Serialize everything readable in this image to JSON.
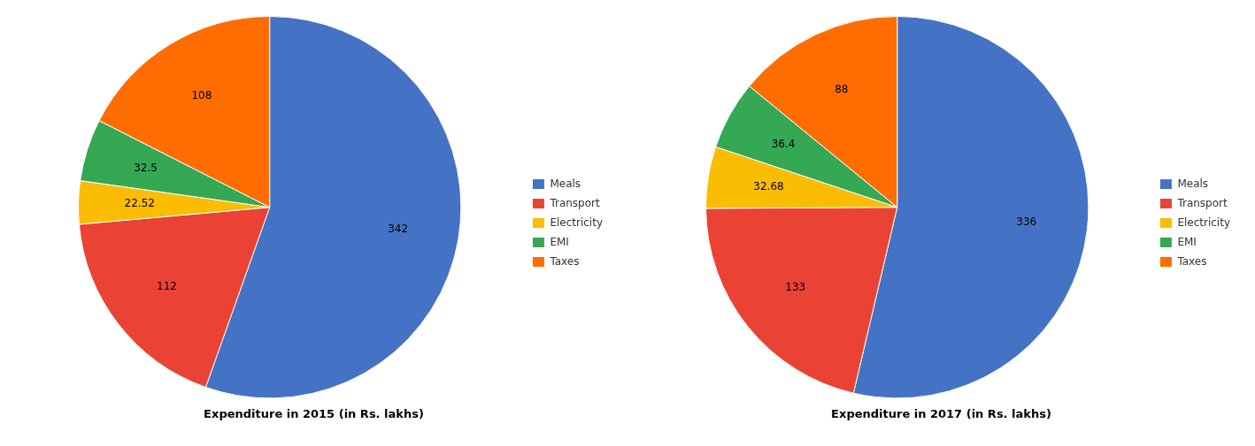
{
  "chart_data": [
    {
      "type": "pie",
      "title": "Expenditure in 2015 (in Rs. lakhs)",
      "categories": [
        "Meals",
        "Transport",
        "Electricity",
        "EMI",
        "Taxes"
      ],
      "values": [
        342,
        112,
        22.52,
        32.5,
        108
      ],
      "colors": [
        "#4472C4",
        "#EA4335",
        "#FBBC04",
        "#34A853",
        "#FF6D00"
      ],
      "data_labels": true,
      "legend": "right"
    },
    {
      "type": "pie",
      "title": "Expenditure in 2017 (in Rs. lakhs)",
      "categories": [
        "Meals",
        "Transport",
        "Electricity",
        "EMI",
        "Taxes"
      ],
      "values": [
        336,
        133,
        32.68,
        36.4,
        88
      ],
      "colors": [
        "#4472C4",
        "#EA4335",
        "#FBBC04",
        "#34A853",
        "#FF6D00"
      ],
      "data_labels": true,
      "legend": "right"
    }
  ]
}
